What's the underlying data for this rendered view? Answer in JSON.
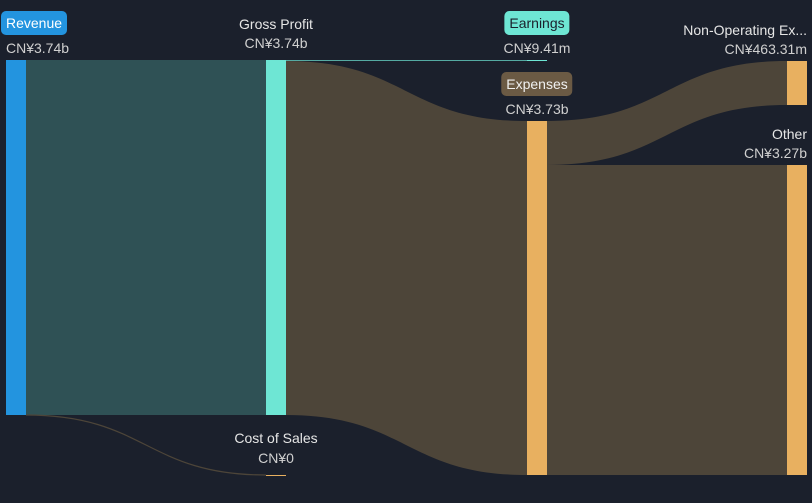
{
  "colors": {
    "background": "#1b202c",
    "revenue": "#2394df",
    "gross_profit": "#6ee6d4",
    "expenses": "#e8b060",
    "flow_revenue": "#2f5155",
    "flow_expense": "#4d4539",
    "expenses_pill": "#6b5a44"
  },
  "nodes": {
    "revenue": {
      "label": "Revenue",
      "value": "CN¥3.74b"
    },
    "gross_profit": {
      "label": "Gross Profit",
      "value": "CN¥3.74b"
    },
    "cost_of_sales": {
      "label": "Cost of Sales",
      "value": "CN¥0"
    },
    "earnings": {
      "label": "Earnings",
      "value": "CN¥9.41m"
    },
    "expenses": {
      "label": "Expenses",
      "value": "CN¥3.73b"
    },
    "non_operating": {
      "label": "Non-Operating Ex...",
      "value": "CN¥463.31m"
    },
    "other": {
      "label": "Other",
      "value": "CN¥3.27b"
    }
  }
}
